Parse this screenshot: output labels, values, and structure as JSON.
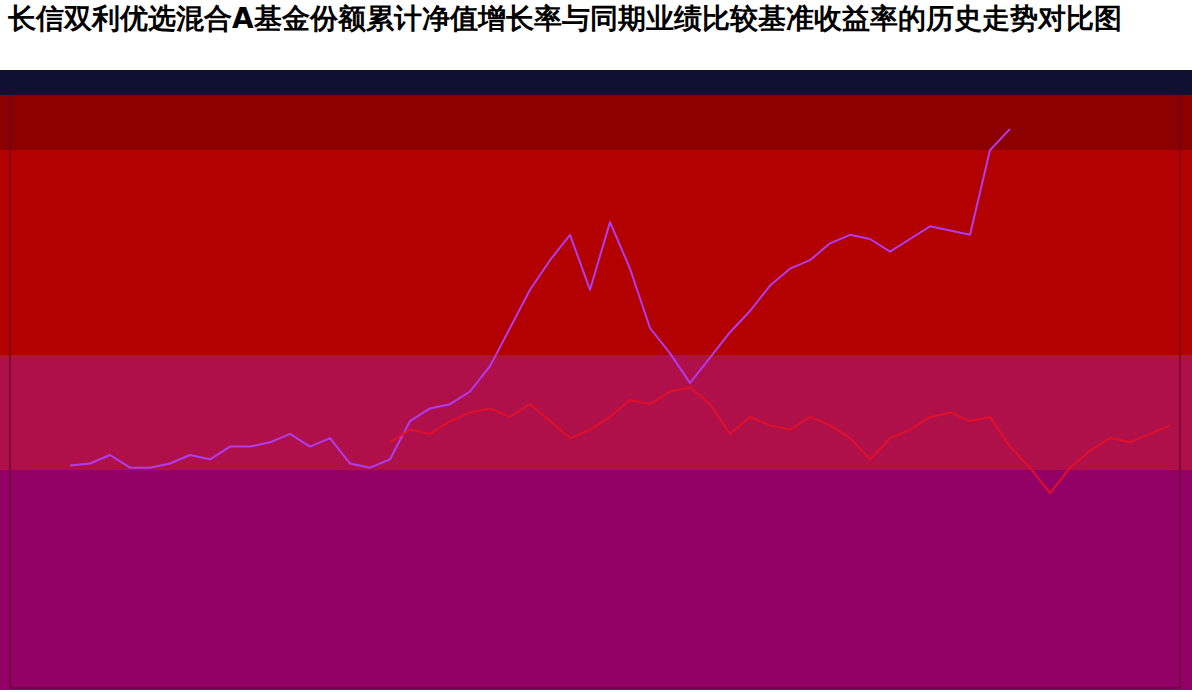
{
  "chart_data": {
    "type": "line",
    "title": "长信双利优选混合A基金份额累计净值增长率与同期业绩比较基准收益率的历史走势对比图",
    "x": [
      0,
      1,
      2,
      3,
      4,
      5,
      6,
      7,
      8,
      9,
      10,
      11,
      12,
      13,
      14,
      15,
      16,
      17,
      18,
      19,
      20,
      21,
      22,
      23,
      24,
      25,
      26,
      27,
      28,
      29,
      30,
      31,
      32,
      33,
      34,
      35,
      36,
      37,
      38,
      39,
      40,
      41,
      42,
      43,
      44,
      45,
      46,
      47,
      48,
      49,
      50,
      51,
      52,
      53,
      54,
      55
    ],
    "xlim": [
      -3,
      55.5
    ],
    "ylim": [
      -52,
      88
    ],
    "tick_labels": false,
    "grid": false,
    "series": [
      {
        "color": "#b03cf0",
        "line_style": "solid",
        "values": [
          0.5,
          1,
          3,
          0,
          0,
          1,
          3,
          2,
          5,
          5,
          6,
          8,
          5,
          7,
          1,
          0,
          2,
          11,
          14,
          15,
          18,
          24,
          33,
          42,
          49,
          55,
          42,
          58,
          47,
          33,
          27,
          20,
          26,
          32,
          37,
          43,
          47,
          49,
          53,
          55,
          54,
          51,
          54,
          57,
          56,
          55,
          75,
          80,
          null,
          null,
          null,
          null,
          null,
          null,
          null,
          null
        ]
      },
      {
        "color": "#e0102a",
        "line_style": "solid",
        "values": [
          null,
          null,
          null,
          null,
          null,
          null,
          null,
          null,
          null,
          null,
          null,
          null,
          null,
          null,
          null,
          null,
          6,
          9,
          8,
          11,
          13,
          14,
          12,
          15,
          11,
          7,
          9,
          12,
          16,
          15,
          18,
          19,
          15,
          8,
          12,
          10,
          9,
          12,
          10,
          7,
          2,
          7,
          9,
          12,
          13,
          11,
          12,
          5,
          0,
          -6,
          0,
          4,
          7,
          6,
          8,
          10
        ]
      }
    ]
  }
}
